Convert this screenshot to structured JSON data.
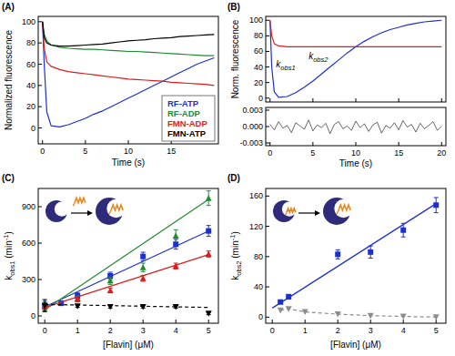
{
  "chart_data": [
    {
      "type": "line",
      "panel_label": "(A)",
      "x_label": "Time (s)",
      "y_label": "Normalized fluorescence",
      "xlim": [
        -0.5,
        20.5
      ],
      "ylim": [
        -15,
        105
      ],
      "xticks": [
        0,
        5,
        10,
        15
      ],
      "yticks": [
        0,
        20,
        40,
        60,
        80,
        100
      ],
      "legend": "lower right",
      "x": [
        0,
        0.2,
        0.5,
        1,
        2,
        3,
        4,
        5,
        6,
        7,
        8,
        9,
        10,
        11,
        12,
        13,
        14,
        15,
        16,
        17,
        18,
        19,
        20
      ],
      "series": [
        {
          "name": "RF-ATP",
          "color": "#1c2fd4",
          "values": [
            100,
            60,
            15,
            2,
            1,
            3,
            6,
            9,
            13,
            16,
            20,
            24,
            28,
            32,
            36,
            40,
            44,
            48,
            52,
            56,
            60,
            63,
            66
          ]
        },
        {
          "name": "RF-ADP",
          "color": "#1e8c2e",
          "values": [
            100,
            88,
            82,
            78,
            76,
            75,
            74.5,
            74,
            74,
            73.5,
            73,
            72.5,
            72,
            72,
            71.5,
            71,
            70.5,
            70,
            69.5,
            69,
            68.5,
            68,
            68
          ]
        },
        {
          "name": "FMN-ADP",
          "color": "#d81e1e",
          "values": [
            100,
            75,
            62,
            58,
            55,
            53,
            52,
            51,
            50,
            49,
            48,
            47,
            46,
            45.5,
            45,
            44.5,
            44,
            43,
            42.5,
            42,
            41.5,
            41,
            40
          ]
        },
        {
          "name": "FMN-ATP",
          "color": "#000000",
          "values": [
            100,
            85,
            80,
            78,
            77,
            77,
            77.5,
            78,
            78.5,
            79,
            80,
            81,
            82,
            82.5,
            83,
            84,
            84.5,
            85,
            86,
            86.5,
            87,
            87.5,
            88
          ]
        }
      ]
    },
    {
      "type": "line",
      "panel_label": "(B)",
      "y_label": "Norm. fluorescence",
      "tick_labels": "y",
      "xlim": [
        -0.5,
        20.5
      ],
      "ylim": [
        -5,
        105
      ],
      "xticks": [
        0,
        5,
        10,
        15,
        20
      ],
      "yticks": [
        0,
        20,
        40,
        60,
        80,
        100
      ],
      "x": [
        0,
        0.2,
        0.5,
        1,
        2,
        3,
        4,
        5,
        6,
        7,
        8,
        9,
        10,
        11,
        12,
        13,
        14,
        15,
        16,
        17,
        18,
        19,
        20
      ],
      "series": [
        {
          "color": "#1c2fd4",
          "values": [
            100,
            40,
            8,
            1,
            2,
            7,
            14,
            22,
            31,
            40,
            49,
            58,
            66,
            73,
            79,
            84,
            88,
            91,
            94,
            96,
            98,
            99,
            100
          ]
        },
        {
          "color": "#d81e1e",
          "values": [
            100,
            80,
            70,
            67,
            66,
            66,
            66,
            66,
            66,
            66,
            66,
            66,
            66,
            66,
            66,
            66,
            66,
            66,
            66,
            66,
            66,
            66,
            66
          ]
        }
      ],
      "annotations": [
        {
          "label": [
            {
              "text": "k"
            },
            {
              "sub": "obs1"
            }
          ],
          "x": 0.7,
          "y": 40
        },
        {
          "label": [
            {
              "text": "k"
            },
            {
              "sub": "obs2"
            }
          ],
          "x": 4.5,
          "y": 50
        }
      ]
    },
    {
      "type": "line",
      "x_label": "Time (s)",
      "xlim": [
        -0.5,
        20.5
      ],
      "ylim": [
        -0.0035,
        0.0035
      ],
      "xticks": [
        0,
        5,
        10,
        15,
        20
      ],
      "yticks": [
        -0.003,
        {
          "value": 0,
          "label": "0.000"
        },
        0.003
      ],
      "x": [
        0,
        0.5,
        1,
        1.5,
        2,
        2.5,
        3,
        3.5,
        4,
        4.5,
        5,
        5.5,
        6,
        6.5,
        7,
        7.5,
        8,
        8.5,
        9,
        9.5,
        10,
        10.5,
        11,
        11.5,
        12,
        12.5,
        13,
        13.5,
        14,
        14.5,
        15,
        15.5,
        16,
        16.5,
        17,
        17.5,
        18,
        18.5,
        19,
        19.5,
        20
      ],
      "series": [
        {
          "color": "#000000",
          "values": [
            0.0004,
            -0.0006,
            0.0009,
            -0.0003,
            0.0002,
            -0.0011,
            0.0007,
            0.0001,
            -0.0005,
            0.0012,
            -0.0008,
            0.0003,
            -0.0002,
            0.0006,
            -0.0013,
            0.0004,
            0.0009,
            -0.0004,
            0.0001,
            -0.0007,
            0.001,
            -0.0002,
            0.0005,
            -0.0009,
            0.0003,
            0.0008,
            -0.0012,
            0.0002,
            -0.0003,
            0.0007,
            -0.0006,
            0.0011,
            -0.0001,
            0.0004,
            -0.001,
            0.0006,
            -0.0004,
            0.0002,
            0.0009,
            -0.0007,
            0.0001
          ]
        }
      ]
    },
    {
      "type": "scatter",
      "panel_label": "(C)",
      "x_label": "[Flavin] (μM)",
      "y_label": [
        {
          "text": "k"
        },
        {
          "sub": "obs1"
        },
        {
          "text": " (min"
        },
        {
          "sup": "-1"
        },
        {
          "text": ")"
        }
      ],
      "xlim": [
        -0.2,
        5.3
      ],
      "ylim": [
        -60,
        1050
      ],
      "xticks": [
        0,
        1,
        2,
        3,
        4,
        5
      ],
      "yticks": [
        0,
        300,
        600,
        900
      ],
      "series": [
        {
          "type": "scatter",
          "color": "#1c2fd4",
          "marker": "square",
          "x": [
            0,
            0.5,
            1,
            2,
            3,
            4,
            5
          ],
          "values": [
            80,
            105,
            165,
            330,
            490,
            590,
            700
          ],
          "errors": [
            40,
            20,
            25,
            30,
            35,
            40,
            45
          ]
        },
        {
          "type": "line",
          "color": "#1c2fd4",
          "x": [
            0,
            5
          ],
          "values": [
            75,
            700
          ]
        },
        {
          "type": "scatter",
          "color": "#1e8c2e",
          "marker": "triangle",
          "x": [
            0,
            1,
            2,
            3,
            4,
            5
          ],
          "values": [
            80,
            140,
            290,
            400,
            660,
            970
          ],
          "errors": [
            30,
            25,
            30,
            35,
            50,
            60
          ]
        },
        {
          "type": "line",
          "color": "#1e8c2e",
          "x": [
            0,
            5
          ],
          "values": [
            50,
            960
          ]
        },
        {
          "type": "scatter",
          "color": "#d81e1e",
          "marker": "triangle",
          "x": [
            0,
            1,
            2,
            3,
            4,
            5
          ],
          "values": [
            80,
            140,
            210,
            310,
            410,
            510
          ],
          "errors": [
            20,
            20,
            20,
            25,
            25,
            25
          ]
        },
        {
          "type": "line",
          "color": "#d81e1e",
          "x": [
            0,
            5
          ],
          "values": [
            70,
            505
          ]
        },
        {
          "type": "scatter",
          "color": "#000000",
          "marker": "triangle-down",
          "x": [
            0,
            1,
            2,
            3,
            4,
            5
          ],
          "values": [
            85,
            80,
            75,
            75,
            75,
            20
          ],
          "errors": [
            50,
            10,
            10,
            10,
            10,
            10
          ]
        },
        {
          "type": "line",
          "color": "#000000",
          "line_style": "dashed",
          "x": [
            0,
            5
          ],
          "values": [
            95,
            70
          ]
        }
      ]
    },
    {
      "type": "scatter",
      "panel_label": "(D)",
      "x_label": "[Flavin] (μM)",
      "y_label": [
        {
          "text": "k"
        },
        {
          "sub": "obs2"
        },
        {
          "text": " (min"
        },
        {
          "sup": "-1"
        },
        {
          "text": ")"
        }
      ],
      "xlim": [
        -0.2,
        5.3
      ],
      "ylim": [
        -8,
        170
      ],
      "xticks": [
        0,
        1,
        2,
        3,
        4,
        5
      ],
      "yticks": [
        0,
        40,
        80,
        120,
        160
      ],
      "series": [
        {
          "type": "scatter",
          "color": "#1c2fd4",
          "marker": "square",
          "x": [
            0.25,
            0.5,
            2,
            3,
            4,
            5
          ],
          "values": [
            20,
            27,
            83,
            86,
            115,
            148
          ],
          "errors": [
            2,
            3,
            6,
            8,
            9,
            10
          ]
        },
        {
          "type": "line",
          "color": "#1c2fd4",
          "x": [
            0,
            5
          ],
          "values": [
            12,
            150
          ]
        },
        {
          "type": "line",
          "color": "#8c8c8c",
          "marker": "triangle-down",
          "line_style": "dashed",
          "x": [
            0.25,
            0.5,
            1,
            2,
            3,
            4,
            5
          ],
          "values": [
            9,
            11,
            7,
            4,
            2,
            1,
            0
          ]
        }
      ]
    }
  ]
}
